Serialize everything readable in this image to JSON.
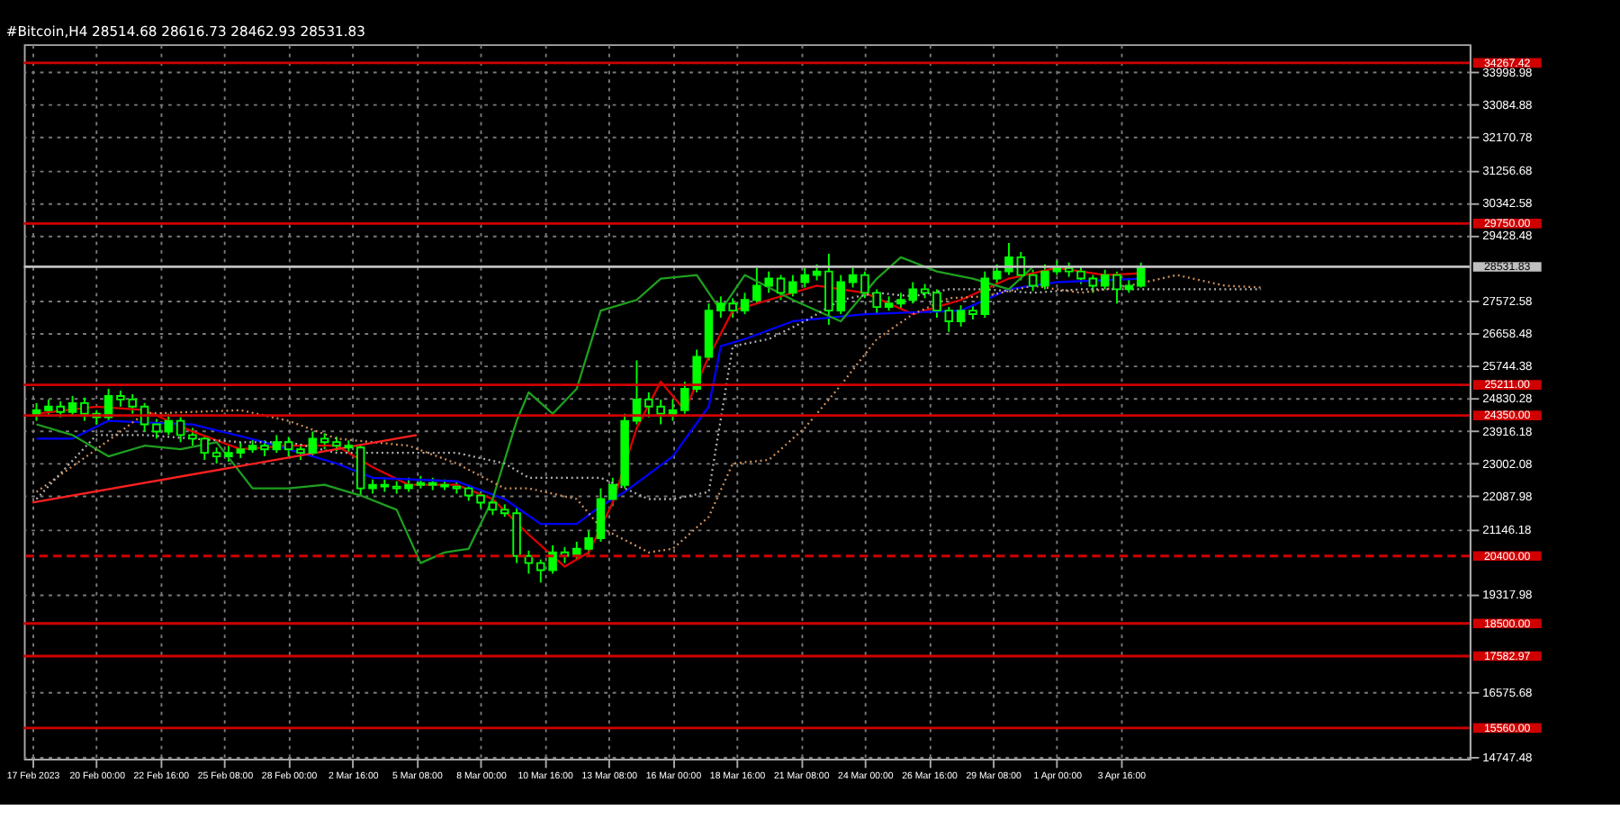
{
  "chart_data": {
    "type": "candlestick",
    "title": "#Bitcoin,H4  28514.68 28616.73 28462.93 28531.83",
    "color": "#00ff00",
    "x": [
      "2023-02-17T12:00",
      "2023-02-18T00:00",
      "2023-02-18T12:00",
      "2023-02-19T00:00",
      "2023-02-19T12:00",
      "2023-02-20T00:00",
      "2023-02-20T12:00",
      "2023-02-21T00:00",
      "2023-02-21T12:00",
      "2023-02-22T00:00",
      "2023-02-22T12:00",
      "2023-02-23T00:00",
      "2023-02-23T12:00",
      "2023-02-24T00:00",
      "2023-02-24T12:00",
      "2023-02-25T00:00",
      "2023-02-25T12:00",
      "2023-02-26T00:00",
      "2023-02-26T12:00",
      "2023-02-27T00:00",
      "2023-02-27T12:00",
      "2023-02-28T00:00",
      "2023-02-28T12:00",
      "2023-03-01T00:00",
      "2023-03-01T12:00",
      "2023-03-02T00:00",
      "2023-03-02T12:00",
      "2023-03-03T00:00",
      "2023-03-03T12:00",
      "2023-03-04T00:00",
      "2023-03-04T12:00",
      "2023-03-05T00:00",
      "2023-03-05T12:00",
      "2023-03-06T00:00",
      "2023-03-06T12:00",
      "2023-03-07T00:00",
      "2023-03-07T12:00",
      "2023-03-08T00:00",
      "2023-03-08T12:00",
      "2023-03-09T00:00",
      "2023-03-09T12:00",
      "2023-03-10T00:00",
      "2023-03-10T12:00",
      "2023-03-11T00:00",
      "2023-03-11T12:00",
      "2023-03-12T00:00",
      "2023-03-12T12:00",
      "2023-03-13T00:00",
      "2023-03-13T12:00",
      "2023-03-14T00:00",
      "2023-03-14T12:00",
      "2023-03-15T00:00",
      "2023-03-15T12:00",
      "2023-03-16T00:00",
      "2023-03-16T12:00",
      "2023-03-17T00:00",
      "2023-03-17T12:00",
      "2023-03-18T00:00",
      "2023-03-18T12:00",
      "2023-03-19T00:00",
      "2023-03-19T12:00",
      "2023-03-20T00:00",
      "2023-03-20T12:00",
      "2023-03-21T00:00",
      "2023-03-21T12:00",
      "2023-03-22T00:00",
      "2023-03-22T12:00",
      "2023-03-23T00:00",
      "2023-03-23T12:00",
      "2023-03-24T00:00",
      "2023-03-24T12:00",
      "2023-03-25T00:00",
      "2023-03-25T12:00",
      "2023-03-26T00:00",
      "2023-03-26T12:00",
      "2023-03-27T00:00",
      "2023-03-27T12:00",
      "2023-03-28T00:00",
      "2023-03-28T12:00",
      "2023-03-29T00:00",
      "2023-03-29T12:00",
      "2023-03-30T00:00",
      "2023-03-30T12:00",
      "2023-03-31T00:00",
      "2023-03-31T12:00",
      "2023-04-01T00:00",
      "2023-04-01T12:00",
      "2023-04-02T00:00",
      "2023-04-02T12:00",
      "2023-04-03T00:00",
      "2023-04-03T12:00",
      "2023-04-04T00:00",
      "2023-04-04T12:00"
    ],
    "ohlc": [
      [
        24400,
        24700,
        24200,
        24500
      ],
      [
        24500,
        24800,
        24350,
        24600
      ],
      [
        24600,
        24750,
        24300,
        24450
      ],
      [
        24450,
        24900,
        24350,
        24700
      ],
      [
        24700,
        24850,
        24200,
        24400
      ],
      [
        24400,
        24500,
        24100,
        24300
      ],
      [
        24300,
        25100,
        24200,
        24900
      ],
      [
        24900,
        25050,
        24600,
        24800
      ],
      [
        24800,
        24950,
        24400,
        24600
      ],
      [
        24600,
        24700,
        23900,
        24100
      ],
      [
        24100,
        24250,
        23700,
        23900
      ],
      [
        23900,
        24400,
        23800,
        24200
      ],
      [
        24200,
        24300,
        23600,
        23800
      ],
      [
        23800,
        24000,
        23500,
        23700
      ],
      [
        23700,
        23800,
        23100,
        23300
      ],
      [
        23300,
        23450,
        23000,
        23200
      ],
      [
        23200,
        23500,
        23050,
        23300
      ],
      [
        23300,
        23600,
        23150,
        23400
      ],
      [
        23400,
        23700,
        23300,
        23500
      ],
      [
        23500,
        23650,
        23200,
        23400
      ],
      [
        23400,
        23800,
        23300,
        23600
      ],
      [
        23600,
        23750,
        23200,
        23400
      ],
      [
        23400,
        23550,
        23100,
        23300
      ],
      [
        23300,
        23900,
        23200,
        23700
      ],
      [
        23700,
        23850,
        23400,
        23600
      ],
      [
        23600,
        23750,
        23350,
        23500
      ],
      [
        23500,
        23650,
        23300,
        23450
      ],
      [
        23450,
        23500,
        22100,
        22300
      ],
      [
        22300,
        22550,
        22150,
        22400
      ],
      [
        22400,
        22550,
        22200,
        22350
      ],
      [
        22350,
        22500,
        22150,
        22300
      ],
      [
        22300,
        22600,
        22200,
        22400
      ],
      [
        22400,
        22650,
        22300,
        22450
      ],
      [
        22450,
        22600,
        22250,
        22400
      ],
      [
        22400,
        22550,
        22250,
        22350
      ],
      [
        22350,
        22500,
        22150,
        22300
      ],
      [
        22300,
        22400,
        21950,
        22100
      ],
      [
        22100,
        22200,
        21750,
        21900
      ],
      [
        21900,
        22000,
        21550,
        21700
      ],
      [
        21700,
        21850,
        21500,
        21600
      ],
      [
        21600,
        21750,
        20200,
        20400
      ],
      [
        20400,
        20550,
        19900,
        20200
      ],
      [
        20200,
        20300,
        19650,
        20000
      ],
      [
        20000,
        20700,
        19900,
        20500
      ],
      [
        20500,
        20650,
        20200,
        20400
      ],
      [
        20400,
        20800,
        20300,
        20600
      ],
      [
        20600,
        21100,
        20450,
        20900
      ],
      [
        20900,
        22300,
        20800,
        22000
      ],
      [
        22000,
        22600,
        21800,
        22400
      ],
      [
        22400,
        24400,
        22300,
        24200
      ],
      [
        24200,
        25900,
        24100,
        24800
      ],
      [
        24800,
        25000,
        24300,
        24600
      ],
      [
        24600,
        24800,
        24100,
        24400
      ],
      [
        24400,
        24800,
        24200,
        24500
      ],
      [
        24500,
        25300,
        24400,
        25100
      ],
      [
        25100,
        26200,
        25000,
        26000
      ],
      [
        26000,
        27500,
        25900,
        27300
      ],
      [
        27300,
        27700,
        27100,
        27500
      ],
      [
        27500,
        27650,
        27100,
        27300
      ],
      [
        27300,
        27800,
        27200,
        27600
      ],
      [
        27600,
        28500,
        27500,
        28000
      ],
      [
        28000,
        28400,
        27800,
        28200
      ],
      [
        28200,
        28300,
        27600,
        27800
      ],
      [
        27800,
        28300,
        27700,
        28100
      ],
      [
        28100,
        28500,
        27950,
        28300
      ],
      [
        28300,
        28600,
        28150,
        28400
      ],
      [
        28400,
        28900,
        26900,
        27300
      ],
      [
        27300,
        28300,
        27200,
        28100
      ],
      [
        28100,
        28500,
        27950,
        28300
      ],
      [
        28300,
        28400,
        27650,
        27800
      ],
      [
        27800,
        27900,
        27200,
        27400
      ],
      [
        27400,
        27700,
        27300,
        27500
      ],
      [
        27500,
        27800,
        27350,
        27600
      ],
      [
        27600,
        28100,
        27500,
        27900
      ],
      [
        27900,
        28050,
        27650,
        27800
      ],
      [
        27800,
        27900,
        27100,
        27300
      ],
      [
        27300,
        27400,
        26700,
        27000
      ],
      [
        27000,
        27450,
        26850,
        27300
      ],
      [
        27300,
        27450,
        27050,
        27200
      ],
      [
        27200,
        28400,
        27100,
        28200
      ],
      [
        28200,
        28600,
        28050,
        28400
      ],
      [
        28400,
        29200,
        28300,
        28800
      ],
      [
        28800,
        28950,
        28150,
        28300
      ],
      [
        28300,
        28450,
        27850,
        28000
      ],
      [
        28000,
        28600,
        27900,
        28400
      ],
      [
        28400,
        28700,
        28300,
        28500
      ],
      [
        28500,
        28650,
        28250,
        28400
      ],
      [
        28400,
        28550,
        28050,
        28200
      ],
      [
        28200,
        28300,
        27800,
        28000
      ],
      [
        28000,
        28450,
        27900,
        28300
      ],
      [
        28300,
        28400,
        27500,
        27900
      ],
      [
        27900,
        28200,
        27800,
        28000
      ],
      [
        28000,
        28650,
        27950,
        28531.83
      ]
    ],
    "series": [
      {
        "type": "line",
        "color": "#e00000",
        "x": [
          "2023-02-17T12:00",
          "2023-02-20T00:00",
          "2023-02-22T00:00",
          "2023-02-24T00:00",
          "2023-02-26T00:00",
          "2023-02-28T00:00",
          "2023-03-02T00:00",
          "2023-03-03T12:00",
          "2023-03-05T00:00",
          "2023-03-07T00:00",
          "2023-03-08T12:00",
          "2023-03-10T00:00",
          "2023-03-11T12:00",
          "2023-03-12T12:00",
          "2023-03-13T12:00",
          "2023-03-14T12:00",
          "2023-03-15T12:00",
          "2023-03-16T12:00",
          "2023-03-17T12:00",
          "2023-03-18T12:00",
          "2023-03-20T00:00",
          "2023-03-22T00:00",
          "2023-03-24T00:00",
          "2023-03-26T00:00",
          "2023-03-28T00:00",
          "2023-03-30T00:00",
          "2023-04-01T00:00",
          "2023-04-03T00:00",
          "2023-04-04T12:00"
        ],
        "values": [
          24400,
          24600,
          24500,
          23900,
          23400,
          23500,
          23500,
          22900,
          22400,
          22400,
          22000,
          21000,
          20100,
          20500,
          21900,
          24000,
          25300,
          24500,
          26000,
          27300,
          27600,
          28000,
          27800,
          27200,
          27600,
          28200,
          28500,
          28300,
          28350
        ]
      },
      {
        "type": "line",
        "color": "#0000ff",
        "x": [
          "2023-02-17T12:00",
          "2023-02-19T00:00",
          "2023-02-20T12:00",
          "2023-02-24T00:00",
          "2023-02-27T00:00",
          "2023-03-02T00:00",
          "2023-03-03T12:00",
          "2023-03-07T00:00",
          "2023-03-09T00:00",
          "2023-03-10T12:00",
          "2023-03-12T00:00",
          "2023-03-13T00:00",
          "2023-03-14T00:00",
          "2023-03-16T00:00",
          "2023-03-17T12:00",
          "2023-03-18T00:00",
          "2023-03-19T00:00",
          "2023-03-21T00:00",
          "2023-03-24T00:00",
          "2023-03-28T00:00",
          "2023-03-30T00:00",
          "2023-04-01T00:00",
          "2023-04-04T12:00"
        ],
        "values": [
          23700,
          23700,
          24200,
          24100,
          23600,
          23000,
          22600,
          22500,
          22000,
          21300,
          21300,
          21800,
          22200,
          23200,
          24600,
          26300,
          26500,
          27000,
          27200,
          27300,
          27900,
          28100,
          28200
        ]
      },
      {
        "type": "line",
        "color": "#1ea01e",
        "x": [
          "2023-02-17T12:00",
          "2023-02-19T00:00",
          "2023-02-20T12:00",
          "2023-02-22T00:00",
          "2023-02-23T12:00",
          "2023-02-25T00:00",
          "2023-02-26T12:00",
          "2023-02-28T00:00",
          "2023-03-01T12:00",
          "2023-03-03T00:00",
          "2023-03-04T12:00",
          "2023-03-05T12:00",
          "2023-03-06T12:00",
          "2023-03-07T12:00",
          "2023-03-08T12:00",
          "2023-03-09T12:00",
          "2023-03-10T00:00",
          "2023-03-11T00:00",
          "2023-03-12T00:00",
          "2023-03-13T00:00",
          "2023-03-14T12:00",
          "2023-03-15T12:00",
          "2023-03-17T00:00",
          "2023-03-18T00:00",
          "2023-03-19T00:00",
          "2023-03-21T00:00",
          "2023-03-23T00:00",
          "2023-03-24T12:00",
          "2023-03-25T12:00",
          "2023-03-27T00:00",
          "2023-03-28T12:00",
          "2023-03-30T00:00",
          "2023-03-31T00:00"
        ],
        "values": [
          24100,
          23800,
          23200,
          23500,
          23400,
          23600,
          22300,
          22300,
          22400,
          22100,
          21700,
          20200,
          20500,
          20600,
          22000,
          24200,
          25000,
          24400,
          25100,
          27300,
          27600,
          28200,
          28300,
          27300,
          28300,
          27600,
          27000,
          28200,
          28800,
          28400,
          28200,
          27900,
          28530
        ]
      },
      {
        "type": "line",
        "color": "#d2915a",
        "line_style": "dotted",
        "x": [
          "2023-02-17T12:00",
          "2023-02-20T00:00",
          "2023-02-22T00:00",
          "2023-02-26T00:00",
          "2023-02-28T00:00",
          "2023-03-02T00:00",
          "2023-03-05T00:00",
          "2023-03-07T00:00",
          "2023-03-09T00:00",
          "2023-03-10T00:00",
          "2023-03-12T00:00",
          "2023-03-13T00:00",
          "2023-03-15T00:00",
          "2023-03-16T00:00",
          "2023-03-17T12:00",
          "2023-03-18T12:00",
          "2023-03-20T00:00",
          "2023-03-21T12:00",
          "2023-03-23T00:00",
          "2023-03-24T12:00",
          "2023-03-26T00:00",
          "2023-03-27T12:00",
          "2023-03-29T00:00",
          "2023-03-31T00:00",
          "2023-04-02T00:00",
          "2023-04-04T00:00",
          "2023-04-06T00:00",
          "2023-04-08T00:00",
          "2023-04-09T12:00"
        ],
        "values": [
          22200,
          23400,
          24400,
          24500,
          24200,
          23700,
          23500,
          23000,
          22300,
          22300,
          22000,
          21200,
          20500,
          20600,
          21500,
          23000,
          23100,
          24000,
          25200,
          26500,
          27200,
          27650,
          27700,
          28000,
          27800,
          28000,
          28300,
          28000,
          27950
        ]
      },
      {
        "type": "line",
        "color": "#b4b4b4",
        "line_style": "dotted",
        "x": [
          "2023-02-17T12:00",
          "2023-02-20T00:00",
          "2023-02-22T00:00",
          "2023-02-26T00:00",
          "2023-02-28T00:00",
          "2023-03-02T00:00",
          "2023-03-05T00:00",
          "2023-03-07T00:00",
          "2023-03-09T00:00",
          "2023-03-10T00:00",
          "2023-03-12T00:00",
          "2023-03-13T00:00",
          "2023-03-15T00:00",
          "2023-03-16T00:00",
          "2023-03-17T12:00",
          "2023-03-18T12:00",
          "2023-03-20T00:00",
          "2023-03-21T12:00",
          "2023-03-23T00:00",
          "2023-03-24T12:00",
          "2023-03-26T00:00",
          "2023-03-27T12:00",
          "2023-03-29T00:00",
          "2023-03-31T00:00",
          "2023-04-02T00:00",
          "2023-04-04T00:00",
          "2023-04-06T00:00",
          "2023-04-08T00:00",
          "2023-04-09T12:00"
        ],
        "values": [
          22000,
          23800,
          23800,
          23600,
          23600,
          23300,
          23300,
          23300,
          23000,
          22600,
          22600,
          22600,
          22000,
          22000,
          22200,
          26300,
          26500,
          27000,
          27600,
          27800,
          27700,
          27900,
          27900,
          27800,
          27900,
          27900,
          27900,
          27900,
          27900
        ]
      },
      {
        "type": "line",
        "color": "#ff2020",
        "x": [
          "2023-02-17T08:00",
          "2023-03-05T08:00"
        ],
        "values": [
          21900,
          23800
        ]
      }
    ],
    "ref_lines": [
      {
        "axis": "y",
        "value": 34267.42,
        "label": "34267.42",
        "color": "#d00000"
      },
      {
        "axis": "y",
        "value": 29750.0,
        "label": "29750.00",
        "color": "#d00000"
      },
      {
        "axis": "y",
        "value": 28531.83,
        "label": "28531.83",
        "color": "#c0c0c0"
      },
      {
        "axis": "y",
        "value": 25211.0,
        "label": "25211.00",
        "color": "#d00000"
      },
      {
        "axis": "y",
        "value": 24350.0,
        "label": "24350.00",
        "color": "#d00000"
      },
      {
        "axis": "y",
        "value": 20400.0,
        "label": "20400.00",
        "color": "#d00000",
        "line_style": "dashed"
      },
      {
        "axis": "y",
        "value": 18500.0,
        "label": "18500.00",
        "color": "#d00000"
      },
      {
        "axis": "y",
        "value": 17582.97,
        "label": "17582.97",
        "color": "#d00000"
      },
      {
        "axis": "y",
        "value": 15560.0,
        "label": "15560.00",
        "color": "#d00000"
      }
    ],
    "xlim": [
      "2023-02-17T08:00",
      "2023-04-17T20:00"
    ],
    "xticks": [
      {
        "value": "2023-02-17T08:00",
        "label": "17 Feb 2023"
      },
      {
        "value": "2023-02-20T00:00",
        "label": "20 Feb 00:00"
      },
      {
        "value": "2023-02-22T16:00",
        "label": "22 Feb 16:00"
      },
      {
        "value": "2023-02-25T08:00",
        "label": "25 Feb 08:00"
      },
      {
        "value": "2023-02-28T00:00",
        "label": "28 Feb 00:00"
      },
      {
        "value": "2023-03-02T16:00",
        "label": "2 Mar 16:00"
      },
      {
        "value": "2023-03-05T08:00",
        "label": "5 Mar 08:00"
      },
      {
        "value": "2023-03-08T00:00",
        "label": "8 Mar 00:00"
      },
      {
        "value": "2023-03-10T16:00",
        "label": "10 Mar 16:00"
      },
      {
        "value": "2023-03-13T08:00",
        "label": "13 Mar 08:00"
      },
      {
        "value": "2023-03-16T00:00",
        "label": "16 Mar 00:00"
      },
      {
        "value": "2023-03-18T16:00",
        "label": "18 Mar 16:00"
      },
      {
        "value": "2023-03-21T08:00",
        "label": "21 Mar 08:00"
      },
      {
        "value": "2023-03-24T00:00",
        "label": "24 Mar 00:00"
      },
      {
        "value": "2023-03-26T16:00",
        "label": "26 Mar 16:00"
      },
      {
        "value": "2023-03-29T08:00",
        "label": "29 Mar 08:00"
      },
      {
        "value": "2023-04-01T00:00",
        "label": "1 Apr 00:00"
      },
      {
        "value": "2023-04-03T16:00",
        "label": "3 Apr 16:00"
      }
    ],
    "ylim": [
      14700,
      34790
    ],
    "yticks": [
      14747.48,
      16575.68,
      19317.98,
      21146.18,
      22087.98,
      23002.08,
      23916.18,
      24830.28,
      25744.38,
      26658.48,
      27572.58,
      29428.48,
      30342.58,
      31256.68,
      32170.78,
      33084.88,
      33998.98
    ],
    "grid": true
  }
}
